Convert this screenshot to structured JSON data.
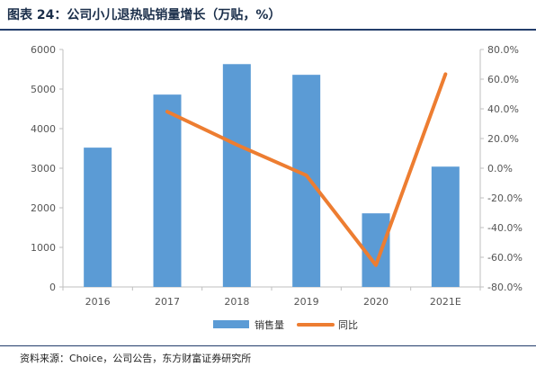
{
  "header": {
    "title": "图表 24：公司小儿退热贴销量增长（万贴，%）"
  },
  "footer": {
    "source": "资料来源：Choice，公司公告，东方财富证券研究所"
  },
  "colors": {
    "bar": "#5b9bd5",
    "line": "#ed7d31",
    "rule": "#233d6b"
  },
  "chart_data": {
    "type": "bar",
    "title": "图表 24：公司小儿退热贴销量增长（万贴，%）",
    "categories": [
      "2016",
      "2017",
      "2018",
      "2019",
      "2020",
      "2021E"
    ],
    "series": [
      {
        "name": "销售量",
        "type": "bar",
        "axis": "left",
        "values": [
          3520,
          4860,
          5630,
          5360,
          1860,
          3040
        ]
      },
      {
        "name": "同比",
        "type": "line",
        "axis": "right",
        "values": [
          null,
          38.1,
          15.8,
          -4.8,
          -65.3,
          63.4
        ]
      }
    ],
    "y_left": {
      "min": 0,
      "max": 6000,
      "ticks": [
        0,
        1000,
        2000,
        3000,
        4000,
        5000,
        6000
      ]
    },
    "y_right": {
      "min": -80,
      "max": 80,
      "ticks": [
        "-80.0%",
        "-60.0%",
        "-40.0%",
        "-20.0%",
        "0.0%",
        "20.0%",
        "40.0%",
        "60.0%",
        "80.0%"
      ]
    },
    "legend": {
      "position": "bottom",
      "entries": [
        "销售量",
        "同比"
      ]
    },
    "grid": false
  }
}
